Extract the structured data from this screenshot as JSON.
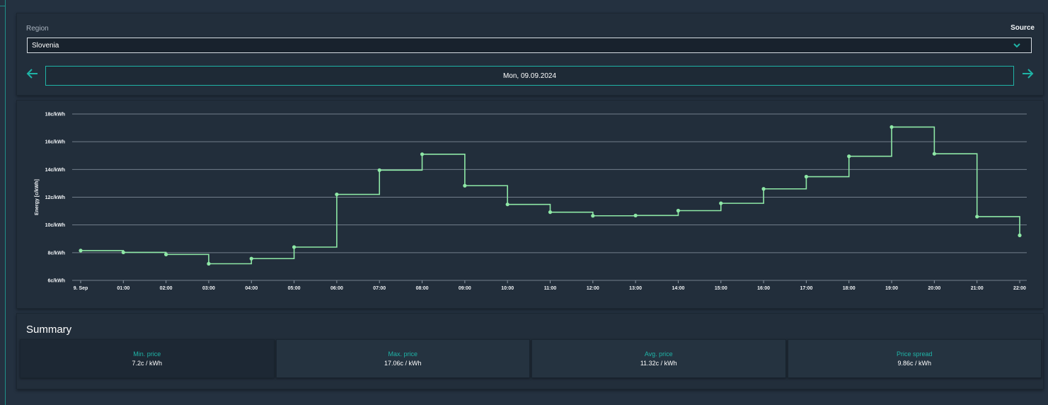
{
  "region": {
    "label": "Region",
    "selected": "Slovenia"
  },
  "source_label": "Source",
  "date": "Mon, 09.09.2024",
  "chart_data": {
    "type": "line",
    "step": true,
    "ylabel": "Energy [c/kWh]",
    "ylim": [
      6,
      18
    ],
    "yticks": [
      "6c/kWh",
      "8c/kWh",
      "10c/kWh",
      "12c/kWh",
      "14c/kWh",
      "16c/kWh",
      "18c/kWh"
    ],
    "ytick_values": [
      6,
      8,
      10,
      12,
      14,
      16,
      18
    ],
    "categories": [
      "9. Sep",
      "01:00",
      "02:00",
      "03:00",
      "04:00",
      "05:00",
      "06:00",
      "07:00",
      "08:00",
      "09:00",
      "10:00",
      "11:00",
      "12:00",
      "13:00",
      "14:00",
      "15:00",
      "16:00",
      "17:00",
      "18:00",
      "19:00",
      "20:00",
      "21:00",
      "22:00"
    ],
    "values": [
      8.15,
      8.02,
      7.87,
      7.2,
      7.57,
      8.4,
      12.2,
      13.95,
      15.1,
      12.83,
      11.48,
      10.92,
      10.66,
      10.68,
      11.03,
      11.56,
      12.6,
      13.48,
      14.95,
      17.06,
      15.13,
      10.6,
      9.25
    ],
    "color": "#8ee8a6",
    "grid": true
  },
  "summary": {
    "title": "Summary",
    "tiles": [
      {
        "label": "Min. price",
        "value": "7.2c / kWh"
      },
      {
        "label": "Max. price",
        "value": "17.06c / kWh"
      },
      {
        "label": "Avg. price",
        "value": "11.32c / kWh"
      },
      {
        "label": "Price spread",
        "value": "9.86c / kWh"
      }
    ]
  },
  "colors": {
    "accent": "#1fb3a6",
    "background": "#243140",
    "card": "#222e3b"
  }
}
